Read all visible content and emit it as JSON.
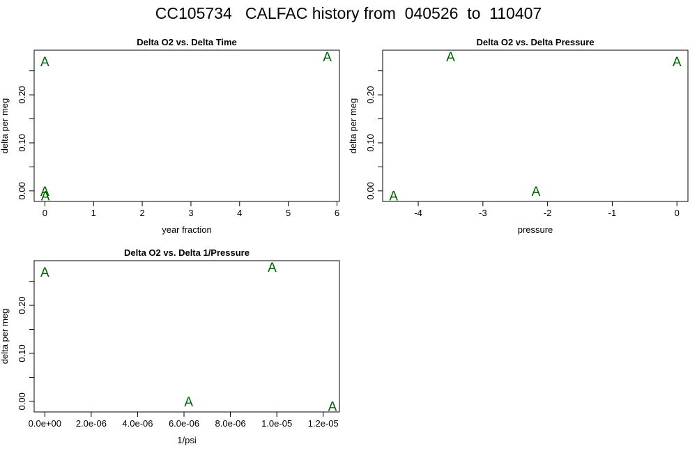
{
  "page_title": "CC105734   CALFAC history from  040526  to  110407",
  "colors": {
    "point": "#006400",
    "axis": "#000000",
    "background": "#ffffff"
  },
  "chart_data": [
    {
      "type": "scatter",
      "title": "Delta O2 vs. Delta Time",
      "xlabel": "year fraction",
      "ylabel": "delta per meg",
      "marker": "A",
      "xlim": [
        -0.22,
        6.05
      ],
      "ylim": [
        -0.022,
        0.293
      ],
      "xticks": [
        0,
        1,
        2,
        3,
        4,
        5,
        6
      ],
      "xtick_labels": [
        "0",
        "1",
        "2",
        "3",
        "4",
        "5",
        "6"
      ],
      "yticks": [
        0.0,
        0.1,
        0.2
      ],
      "ytick_labels": [
        "0.00",
        "0.10",
        "0.20"
      ],
      "yminor": [
        0.05,
        0.15,
        0.25
      ],
      "x": [
        0.0,
        0.0,
        0.01,
        5.8
      ],
      "y": [
        0.27,
        0.0,
        -0.01,
        0.28
      ]
    },
    {
      "type": "scatter",
      "title": "Delta O2 vs. Delta Pressure",
      "xlabel": "pressure",
      "ylabel": "delta per meg",
      "marker": "A",
      "xlim": [
        -4.55,
        0.17
      ],
      "ylim": [
        -0.022,
        0.293
      ],
      "xticks": [
        -4,
        -3,
        -2,
        -1,
        0
      ],
      "xtick_labels": [
        "-4",
        "-3",
        "-2",
        "-1",
        "0"
      ],
      "yticks": [
        0.0,
        0.1,
        0.2
      ],
      "ytick_labels": [
        "0.00",
        "0.10",
        "0.20"
      ],
      "yminor": [
        0.05,
        0.15,
        0.25
      ],
      "x": [
        0.0,
        -2.18,
        -3.5,
        -4.38
      ],
      "y": [
        0.27,
        0.0,
        0.28,
        -0.01
      ]
    },
    {
      "type": "scatter",
      "title": "Delta O2 vs. Delta 1/Pressure",
      "xlabel": "1/psi",
      "ylabel": "delta per meg",
      "marker": "A",
      "xlim": [
        -4.6e-07,
        1.27e-05
      ],
      "ylim": [
        -0.022,
        0.293
      ],
      "xticks": [
        0,
        2e-06,
        4e-06,
        6e-06,
        8e-06,
        1e-05,
        1.2e-05
      ],
      "xtick_labels": [
        "0.0e+00",
        "2.0e-06",
        "4.0e-06",
        "6.0e-06",
        "8.0e-06",
        "1.0e-05",
        "1.2e-05"
      ],
      "yticks": [
        0.0,
        0.1,
        0.2
      ],
      "ytick_labels": [
        "0.00",
        "0.10",
        "0.20"
      ],
      "yminor": [
        0.05,
        0.15,
        0.25
      ],
      "x": [
        0.0,
        6.2e-06,
        9.8e-06,
        1.24e-05
      ],
      "y": [
        0.27,
        0.0,
        0.28,
        -0.01
      ]
    }
  ]
}
